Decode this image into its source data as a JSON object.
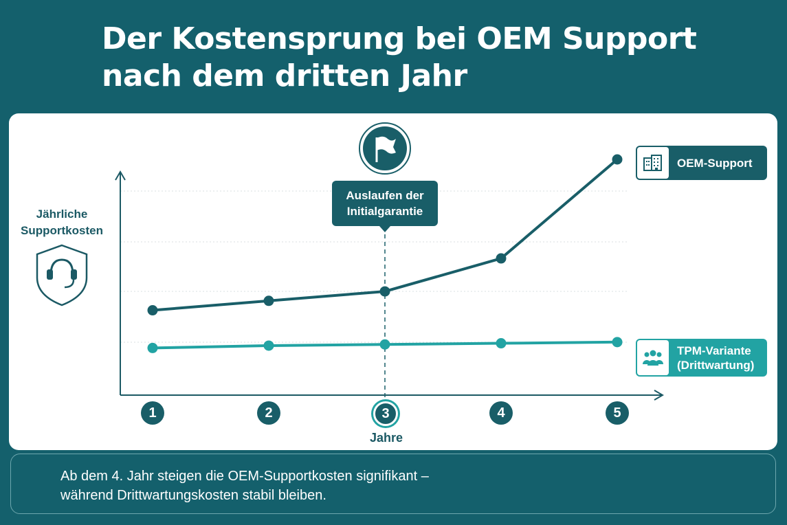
{
  "title": {
    "line1": "Der Kostensprung bei OEM Support",
    "line2": "nach dem dritten Jahr"
  },
  "chart_data": {
    "type": "line",
    "x": [
      1,
      2,
      3,
      4,
      5
    ],
    "xlabel": "Jahre",
    "ylabel": [
      "Jährliche",
      "Supportkosten"
    ],
    "yticks_shown": false,
    "grid": true,
    "series": [
      {
        "name": "OEM-Support",
        "values": [
          3.6,
          4.0,
          4.4,
          5.8,
          10.0
        ],
        "color": "#195e68",
        "icon": "building-icon"
      },
      {
        "name": "TPM-Variante (Drittwartung)",
        "values": [
          2.0,
          2.1,
          2.15,
          2.2,
          2.25
        ],
        "color": "#22a3a3",
        "icon": "team-icon"
      }
    ],
    "annotation": {
      "x": 3,
      "lines": [
        "Auslaufen der",
        "Initialgarantie"
      ],
      "icon": "flag-icon"
    },
    "highlighted_x": 3
  },
  "legend": {
    "oem": [
      "OEM-Support"
    ],
    "tpm": [
      "TPM-Variante",
      "(Drittwartung)"
    ]
  },
  "caption": {
    "line1": "Ab dem 4. Jahr steigen die OEM-Supportkosten signifikant –",
    "line2": "während Drittwartungskosten stabil bleiben."
  },
  "colors": {
    "background": "#14606c",
    "oem": "#195e68",
    "tpm": "#22a3a3",
    "panel": "#ffffff"
  }
}
